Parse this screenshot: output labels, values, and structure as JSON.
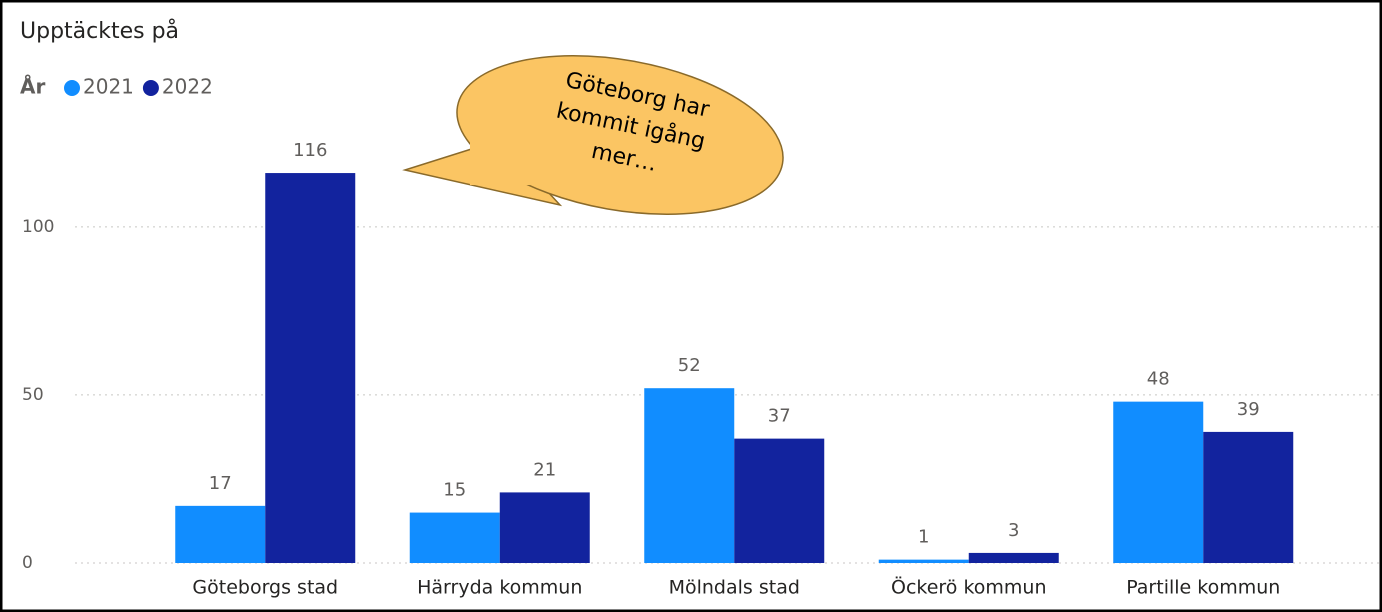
{
  "chart_data": {
    "type": "bar",
    "title": "Upptäcktes på",
    "legend_title": "År",
    "categories": [
      "Göteborgs stad",
      "Härryda kommun",
      "Mölndals stad",
      "Öckerö kommun",
      "Partille kommun"
    ],
    "series": [
      {
        "name": "2021",
        "color": "#118dff",
        "values": [
          17,
          15,
          52,
          1,
          48
        ]
      },
      {
        "name": "2022",
        "color": "#12239e",
        "values": [
          116,
          21,
          37,
          3,
          39
        ]
      }
    ],
    "ylim": [
      0,
      130
    ],
    "yticks": [
      0,
      50,
      100
    ],
    "grid": true,
    "annotation": [
      "Göteborg har",
      "kommit igång",
      "mer…"
    ]
  }
}
